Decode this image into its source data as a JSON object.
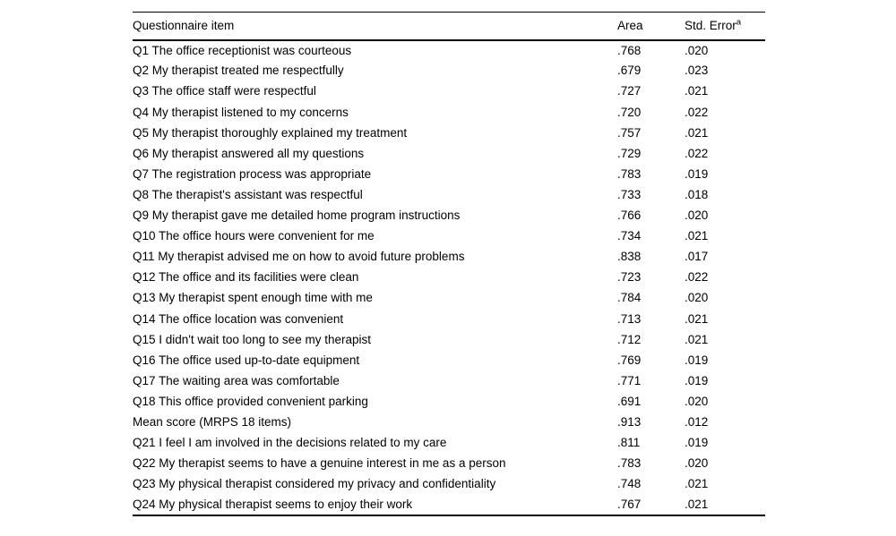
{
  "table": {
    "header": {
      "item": "Questionnaire item",
      "area": "Area",
      "std_error": "Std. Error",
      "std_error_superscript": "a"
    },
    "rows": [
      {
        "item": "Q1 The office receptionist was courteous",
        "area": ".768",
        "std_error": ".020"
      },
      {
        "item": "Q2 My therapist treated me respectfully",
        "area": ".679",
        "std_error": ".023"
      },
      {
        "item": "Q3 The office staff were respectful",
        "area": ".727",
        "std_error": ".021"
      },
      {
        "item": "Q4 My therapist listened to my concerns",
        "area": ".720",
        "std_error": ".022"
      },
      {
        "item": "Q5 My therapist thoroughly explained my treatment",
        "area": ".757",
        "std_error": ".021"
      },
      {
        "item": "Q6 My therapist answered all my questions",
        "area": ".729",
        "std_error": ".022"
      },
      {
        "item": "Q7 The registration process was appropriate",
        "area": ".783",
        "std_error": ".019"
      },
      {
        "item": "Q8 The therapist's assistant was respectful",
        "area": ".733",
        "std_error": ".018"
      },
      {
        "item": "Q9 My therapist gave me detailed home program instructions",
        "area": ".766",
        "std_error": ".020"
      },
      {
        "item": "Q10 The office hours were convenient for me",
        "area": ".734",
        "std_error": ".021"
      },
      {
        "item": "Q11 My therapist advised me on how to avoid future problems",
        "area": ".838",
        "std_error": ".017"
      },
      {
        "item": "Q12 The office and its facilities were clean",
        "area": ".723",
        "std_error": ".022"
      },
      {
        "item": "Q13 My therapist spent enough time with me",
        "area": ".784",
        "std_error": ".020"
      },
      {
        "item": "Q14 The office location was convenient",
        "area": ".713",
        "std_error": ".021"
      },
      {
        "item": "Q15 I didn't wait too long to see my therapist",
        "area": ".712",
        "std_error": ".021"
      },
      {
        "item": "Q16 The office used up-to-date equipment",
        "area": ".769",
        "std_error": ".019"
      },
      {
        "item": "Q17 The waiting area was comfortable",
        "area": ".771",
        "std_error": ".019"
      },
      {
        "item": "Q18 This office provided convenient parking",
        "area": ".691",
        "std_error": ".020"
      },
      {
        "item": "Mean score (MRPS 18 items)",
        "area": ".913",
        "std_error": ".012"
      },
      {
        "item": "Q21 I feel I am involved in the decisions related to my care",
        "area": ".811",
        "std_error": ".019"
      },
      {
        "item": "Q22 My therapist seems to have a genuine interest in me as a person",
        "area": ".783",
        "std_error": ".020"
      },
      {
        "item": "Q23 My physical therapist considered my privacy and confidentiality",
        "area": ".748",
        "std_error": ".021"
      },
      {
        "item": "Q24 My physical therapist seems to enjoy their work",
        "area": ".767",
        "std_error": ".021"
      }
    ]
  },
  "colors": {
    "text": "#000000",
    "background": "#ffffff",
    "rule": "#000000"
  }
}
